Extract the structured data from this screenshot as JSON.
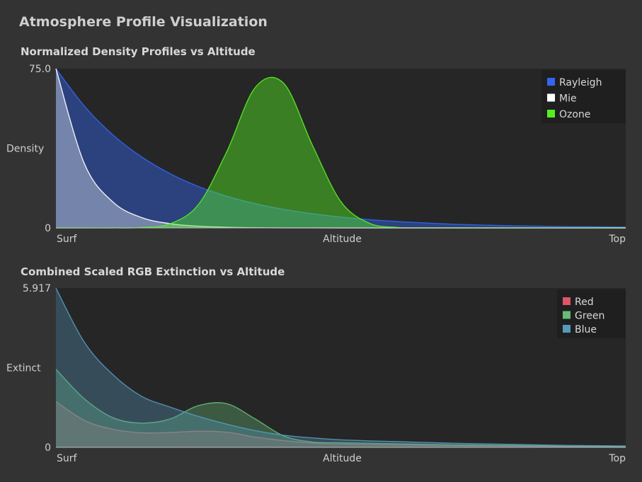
{
  "window": {
    "title": "Atmosphere Profile Visualization"
  },
  "charts": [
    {
      "title": "Normalized Density Profiles vs Altitude",
      "ylabel": "Density",
      "xlabel": "Altitude",
      "x_left_label": "Surf",
      "x_right_label": "Top",
      "y_max_label": "75.0",
      "y_min_label": "0"
    },
    {
      "title": "Combined Scaled RGB Extinction vs Altitude",
      "ylabel": "Extinct",
      "xlabel": "Altitude",
      "x_left_label": "Surf",
      "x_right_label": "Top",
      "y_max_label": "5.917",
      "y_min_label": "0"
    }
  ],
  "chart_data": [
    {
      "type": "area",
      "title": "Normalized Density Profiles vs Altitude",
      "xlabel": "Altitude",
      "ylabel": "Density",
      "x": [
        0,
        0.05,
        0.1,
        0.15,
        0.2,
        0.25,
        0.3,
        0.35,
        0.4,
        0.45,
        0.5,
        0.55,
        0.6,
        0.65,
        0.7,
        0.75,
        0.8,
        0.85,
        0.9,
        0.95,
        1.0
      ],
      "ylim": [
        0,
        75.0
      ],
      "grid": false,
      "legend_position": "top-right",
      "series": [
        {
          "name": "Rayleigh",
          "color": "#3366ee",
          "values": [
            75.0,
            57.3,
            43.8,
            33.5,
            25.6,
            19.5,
            14.9,
            11.4,
            8.7,
            6.7,
            5.1,
            3.9,
            3.0,
            2.3,
            1.7,
            1.3,
            1.0,
            0.8,
            0.6,
            0.5,
            0.4
          ]
        },
        {
          "name": "Mie",
          "color": "#ffffff",
          "values": [
            75.0,
            30.2,
            12.2,
            4.9,
            2.0,
            0.8,
            0.3,
            0.1,
            0.05,
            0.02,
            0,
            0,
            0,
            0,
            0,
            0,
            0,
            0,
            0,
            0,
            0
          ]
        },
        {
          "name": "Ozone",
          "color": "#55ee22",
          "values": [
            0,
            0,
            0,
            0.2,
            1.9,
            11.0,
            36.0,
            66.2,
            68.0,
            39.0,
            12.4,
            2.2,
            0.2,
            0,
            0,
            0,
            0,
            0,
            0,
            0,
            0
          ]
        }
      ]
    },
    {
      "type": "area",
      "title": "Combined Scaled RGB Extinction vs Altitude",
      "xlabel": "Altitude",
      "ylabel": "Extinct",
      "x": [
        0,
        0.05,
        0.1,
        0.15,
        0.2,
        0.25,
        0.3,
        0.35,
        0.4,
        0.45,
        0.5,
        0.55,
        0.6,
        0.65,
        0.7,
        0.75,
        0.8,
        0.85,
        0.9,
        0.95,
        1.0
      ],
      "ylim": [
        0,
        5.917
      ],
      "grid": false,
      "legend_position": "top-right",
      "series": [
        {
          "name": "Red",
          "color": "#dd5566",
          "values": [
            1.7,
            1.0,
            0.67,
            0.54,
            0.55,
            0.6,
            0.56,
            0.38,
            0.25,
            0.16,
            0.12,
            0.1,
            0.09,
            0.08,
            0.07,
            0.06,
            0.05,
            0.04,
            0.03,
            0.02,
            0.02
          ]
        },
        {
          "name": "Green",
          "color": "#66bb77",
          "values": [
            2.9,
            1.8,
            1.1,
            0.9,
            1.05,
            1.55,
            1.62,
            1.05,
            0.42,
            0.2,
            0.17,
            0.15,
            0.13,
            0.11,
            0.09,
            0.08,
            0.07,
            0.06,
            0.05,
            0.04,
            0.03
          ]
        },
        {
          "name": "Blue",
          "color": "#5599bb",
          "values": [
            5.917,
            3.9,
            2.7,
            1.9,
            1.5,
            1.15,
            0.86,
            0.62,
            0.45,
            0.35,
            0.28,
            0.24,
            0.21,
            0.18,
            0.15,
            0.13,
            0.11,
            0.09,
            0.07,
            0.06,
            0.05
          ]
        }
      ]
    }
  ]
}
